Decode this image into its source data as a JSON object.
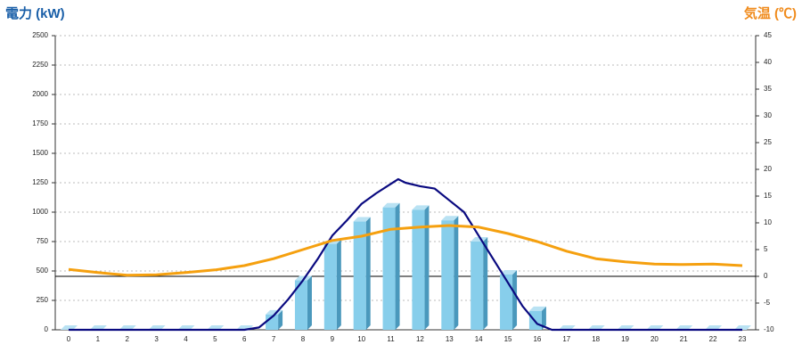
{
  "chart_data": {
    "type": "bar",
    "y_axis_title": "電力 (kW)",
    "y2_axis_title": "気温 (℃)",
    "categories": [
      "0",
      "1",
      "2",
      "3",
      "4",
      "5",
      "6",
      "7",
      "8",
      "9",
      "10",
      "11",
      "12",
      "13",
      "14",
      "15",
      "16",
      "17",
      "18",
      "19",
      "20",
      "21",
      "22",
      "23"
    ],
    "series": [
      {
        "type": "bar",
        "color": "#87ceeb",
        "values": [
          0,
          0,
          0,
          0,
          0,
          0,
          0,
          130,
          420,
          730,
          920,
          1040,
          1020,
          930,
          750,
          470,
          160,
          0,
          0,
          0,
          0,
          0,
          0,
          0
        ]
      },
      {
        "type": "line",
        "color": "#0a0a80",
        "x": [
          0,
          1,
          2,
          3,
          4,
          5,
          6,
          6.5,
          7,
          7.5,
          8,
          8.5,
          9,
          9.5,
          10,
          10.5,
          11,
          11.25,
          11.5,
          12,
          12.5,
          13,
          13.5,
          14,
          14.5,
          15,
          15.5,
          16,
          16.5,
          17,
          18,
          19,
          20,
          21,
          22,
          23
        ],
        "values": [
          0,
          0,
          0,
          0,
          0,
          0,
          0,
          20,
          120,
          260,
          420,
          600,
          800,
          930,
          1070,
          1160,
          1240,
          1280,
          1250,
          1220,
          1200,
          1100,
          1000,
          800,
          600,
          400,
          200,
          50,
          0,
          0,
          0,
          0,
          0,
          0,
          0,
          0
        ]
      },
      {
        "type": "line",
        "color": "#f5a00f",
        "axis": "y2",
        "values": [
          1.3,
          0.7,
          0.2,
          0.3,
          0.7,
          1.2,
          2.0,
          3.3,
          5.0,
          6.7,
          7.5,
          8.8,
          9.2,
          9.5,
          9.2,
          8.0,
          6.5,
          4.7,
          3.3,
          2.7,
          2.3,
          2.2,
          2.3,
          2.0
        ]
      }
    ],
    "ylim": [
      0,
      2500
    ],
    "yticks": [
      0,
      250,
      500,
      750,
      1000,
      1250,
      1500,
      1750,
      2000,
      2250,
      2500
    ],
    "y2lim": [
      -10,
      45
    ],
    "y2ticks": [
      -10,
      -5,
      0,
      5,
      10,
      15,
      20,
      25,
      30,
      35,
      40,
      45
    ],
    "grid": true,
    "y2_zero_line": true
  }
}
